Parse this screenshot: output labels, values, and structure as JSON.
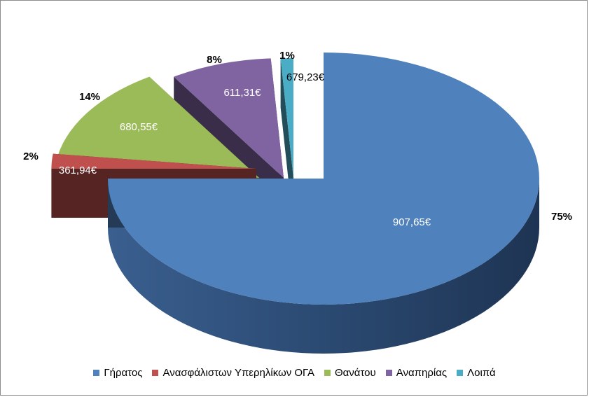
{
  "chart_data": {
    "type": "pie",
    "title": "",
    "categories": [
      "Γήρατος",
      "Ανασφάλιστων Υπερηλίκων ΟΓΑ",
      "Θανάτου",
      "Αναπηρίας",
      "Λοιπά"
    ],
    "values": [
      75,
      2,
      14,
      8,
      1
    ],
    "percent_labels": [
      "75%",
      "2%",
      "14%",
      "8%",
      "1%"
    ],
    "value_labels": [
      "907,65€",
      "361,94€",
      "680,55€",
      "611,31€",
      "679,23€"
    ],
    "colors": [
      "#4f81bd",
      "#c0504d",
      "#9bbb59",
      "#8064a2",
      "#4bacc6"
    ],
    "legend_position": "bottom",
    "style": "3d-exploded"
  }
}
